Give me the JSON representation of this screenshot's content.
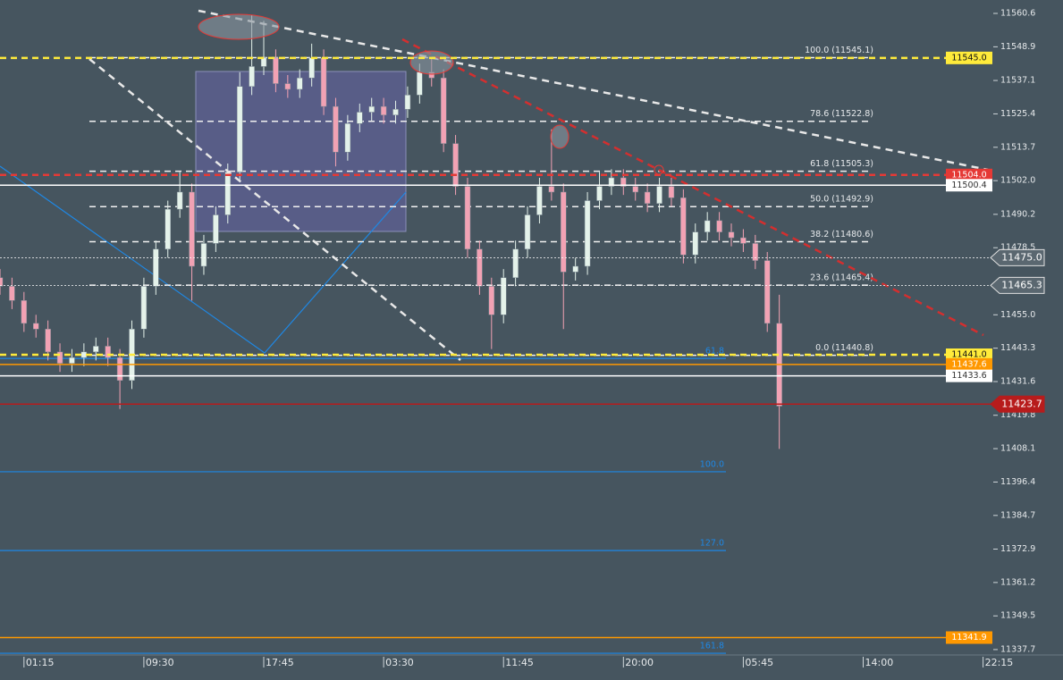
{
  "chart_data": {
    "type": "candlestick",
    "x": [
      -6,
      -3,
      0,
      3,
      6,
      9,
      12,
      15,
      18,
      21,
      24,
      27,
      30,
      33,
      36,
      39,
      42,
      45,
      48,
      51,
      54,
      57,
      60,
      63,
      66,
      69,
      72,
      75,
      78,
      81,
      84,
      87,
      90,
      93,
      96,
      99,
      102,
      105,
      108,
      111,
      114,
      117,
      120,
      123,
      126,
      129,
      132,
      135,
      138,
      141,
      144,
      147,
      150,
      153,
      156,
      159,
      162,
      165,
      168,
      171,
      174,
      177,
      180,
      183,
      186,
      189
    ],
    "open": [
      11468,
      11465,
      11460,
      11452,
      11450,
      11442,
      11438,
      11440,
      11442,
      11444,
      11440,
      11432,
      11450,
      11465,
      11478,
      11492,
      11498,
      11472,
      11480,
      11490,
      11505,
      11535,
      11542,
      11545,
      11536,
      11534,
      11538,
      11545,
      11528,
      11512,
      11522,
      11526,
      11528,
      11525,
      11527,
      11532,
      11540,
      11538,
      11515,
      11500,
      11478,
      11465,
      11455,
      11468,
      11478,
      11490,
      11500,
      11498,
      11470,
      11472,
      11495,
      11500,
      11503,
      11500,
      11498,
      11494,
      11500,
      11496,
      11476,
      11484,
      11488,
      11484,
      11482,
      11480,
      11474,
      11452
    ],
    "high": [
      11471,
      11468,
      11463,
      11455,
      11453,
      11445,
      11443,
      11445,
      11447,
      11447,
      11443,
      11453,
      11468,
      11481,
      11495,
      11505,
      11501,
      11483,
      11493,
      11508,
      11540,
      11560,
      11558,
      11548,
      11539,
      11541,
      11550,
      11548,
      11531,
      11525,
      11529,
      11531,
      11531,
      11530,
      11535,
      11543,
      11545,
      11541,
      11518,
      11503,
      11481,
      11468,
      11471,
      11481,
      11493,
      11503,
      11520,
      11501,
      11475,
      11498,
      11505,
      11506,
      11506,
      11503,
      11501,
      11503,
      11503,
      11499,
      11487,
      11491,
      11491,
      11487,
      11485,
      11483,
      11477,
      11462
    ],
    "low": [
      11462,
      11457,
      11449,
      11447,
      11439,
      11435,
      11435,
      11437,
      11439,
      11437,
      11422,
      11429,
      11447,
      11462,
      11475,
      11489,
      11460,
      11469,
      11477,
      11487,
      11502,
      11532,
      11539,
      11533,
      11531,
      11531,
      11535,
      11525,
      11507,
      11509,
      11519,
      11523,
      11522,
      11522,
      11524,
      11529,
      11535,
      11512,
      11497,
      11475,
      11462,
      11443,
      11452,
      11465,
      11475,
      11487,
      11495,
      11450,
      11467,
      11469,
      11492,
      11497,
      11497,
      11495,
      11491,
      11491,
      11493,
      11473,
      11473,
      11481,
      11481,
      11479,
      11477,
      11471,
      11449,
      11408
    ],
    "close": [
      11465,
      11460,
      11452,
      11450,
      11442,
      11438,
      11440,
      11442,
      11444,
      11440,
      11432,
      11450,
      11465,
      11478,
      11492,
      11498,
      11472,
      11480,
      11490,
      11505,
      11535,
      11542,
      11545,
      11536,
      11534,
      11538,
      11545,
      11528,
      11512,
      11522,
      11526,
      11528,
      11525,
      11527,
      11532,
      11540,
      11538,
      11515,
      11500,
      11478,
      11465,
      11455,
      11468,
      11478,
      11490,
      11500,
      11498,
      11470,
      11472,
      11495,
      11500,
      11503,
      11500,
      11498,
      11494,
      11500,
      11496,
      11476,
      11484,
      11488,
      11484,
      11482,
      11480,
      11474,
      11452,
      11423
    ],
    "up_color": "#e4f2ea",
    "down_color": "#f2a2b4",
    "xlim": [
      -6,
      260
    ],
    "xticks": [
      {
        "value": 0,
        "label": "01:15"
      },
      {
        "value": 30,
        "label": "09:30"
      },
      {
        "value": 60,
        "label": "17:45"
      },
      {
        "value": 90,
        "label": "03:30"
      },
      {
        "value": 120,
        "label": "11:45"
      },
      {
        "value": 150,
        "label": "20:00"
      },
      {
        "value": 180,
        "label": "05:45"
      },
      {
        "value": 210,
        "label": "14:00"
      },
      {
        "value": 240,
        "label": "22:15"
      }
    ],
    "ylim": [
      11335.8,
      11565.3
    ],
    "yticks": [
      11560.6,
      11548.9,
      11537.1,
      11525.4,
      11513.7,
      {
        "value": 11502.0,
        "label": "11502.0"
      },
      11490.2,
      11478.5,
      {
        "value": 11455.0,
        "label": "11455.0"
      },
      11443.3,
      11431.6,
      11419.8,
      11408.1,
      11396.4,
      11384.7,
      11372.9,
      11361.2,
      11349.5,
      11337.7
    ],
    "fib_levels": [
      {
        "value": 11545.1,
        "label": "100.0 (11545.1)"
      },
      {
        "value": 11522.8,
        "label": "78.6 (11522.8)"
      },
      {
        "value": 11505.3,
        "label": "61.8 (11505.3)"
      },
      {
        "value": 11492.9,
        "label": "50.0 (11492.9)"
      },
      {
        "value": 11480.6,
        "label": "38.2 (11480.6)"
      },
      {
        "value": 11465.4,
        "label": "23.6 (11465.4)"
      },
      {
        "value": 11440.8,
        "label": "0.0 (11440.8)"
      }
    ],
    "extension_levels": [
      {
        "price": 11439.7,
        "label": "61.8"
      },
      {
        "price": 11400.0,
        "label": "100.0"
      },
      {
        "price": 11372.4,
        "label": "127.0"
      },
      {
        "price": 11336.4,
        "label": "161.8"
      }
    ],
    "extension_color": "#1e88e5",
    "price_lines": [
      {
        "value": 11545.0,
        "label": "11545.0",
        "color": "#ffeb3b",
        "dash": "dashed",
        "tag": "box",
        "text_color": "#111"
      },
      {
        "value": 11504.0,
        "label": "11504.0",
        "color": "#e53935",
        "dash": "dashed",
        "tag": "box",
        "text_color": "#fff"
      },
      {
        "value": 11500.4,
        "label": "11500.4",
        "color": "#ffffff",
        "dash": "solid",
        "tag": "box",
        "text_color": "#333"
      },
      {
        "value": 11475.0,
        "label": "11475.0",
        "color": "#ffffff",
        "dash": "dotted",
        "tag": "arrow",
        "text_color": "#fff"
      },
      {
        "value": 11465.3,
        "label": "11465.3",
        "color": "#ffffff",
        "dash": "dotted",
        "tag": "arrow",
        "text_color": "#fff"
      },
      {
        "value": 11441.0,
        "label": "11441.0",
        "color": "#ffeb3b",
        "dash": "dashed",
        "tag": "box",
        "text_color": "#111"
      },
      {
        "value": 11437.6,
        "label": "11437.6",
        "color": "#ff9800",
        "dash": "solid",
        "tag": "box",
        "text_color": "#fff"
      },
      {
        "value": 11433.6,
        "label": "11433.6",
        "color": "#ffffff",
        "dash": "solid",
        "tag": "box",
        "text_color": "#333"
      },
      {
        "value": 11423.7,
        "label": "11423.7",
        "color": "#b71c1c",
        "dash": "solid",
        "tag": "arrow",
        "text_color": "#fff"
      },
      {
        "value": 11341.9,
        "label": "11341.9",
        "color": "#ff9800",
        "dash": "solid",
        "tag": "box",
        "text_color": "#fff"
      }
    ]
  }
}
